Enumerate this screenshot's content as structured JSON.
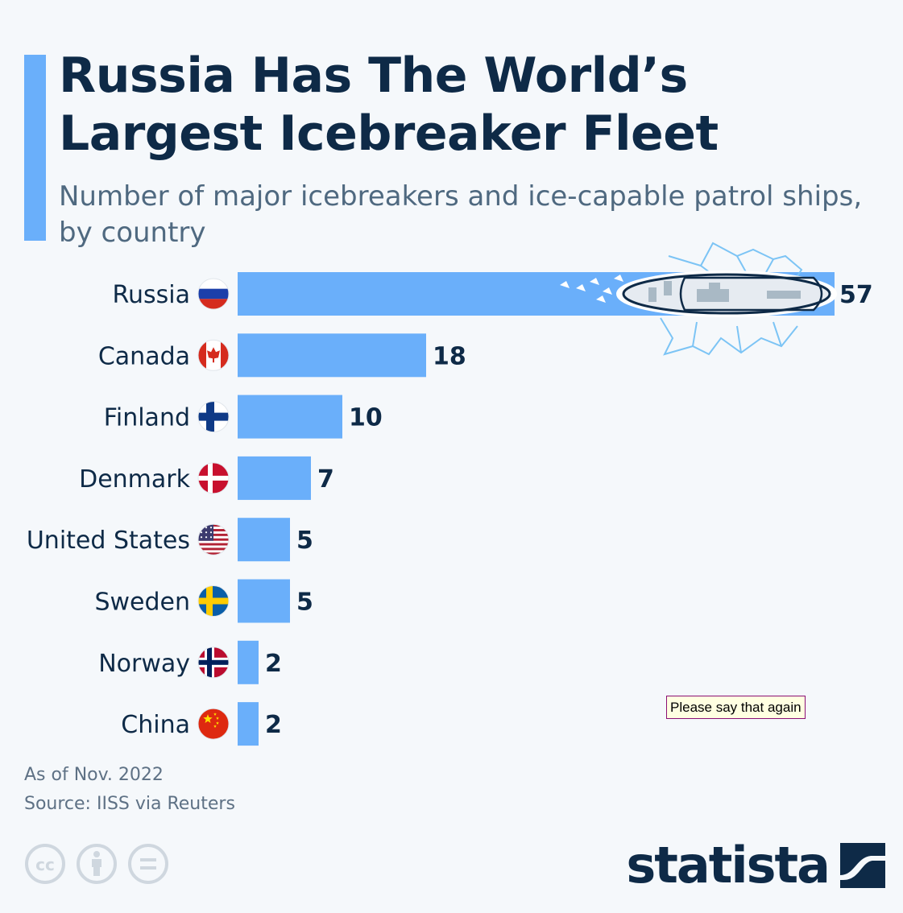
{
  "header": {
    "title": "Russia Has The World’s Largest Icebreaker Fleet",
    "subtitle": "Number of major icebreakers and ice-capable patrol ships, by country"
  },
  "footer": {
    "note": "As of Nov. 2022",
    "source": "Source: IISS via Reuters",
    "brand": "statista"
  },
  "tooltip": {
    "text": "Please say that again"
  },
  "colors": {
    "bar": "#6aaffa",
    "title": "#0e2a47",
    "subtitle": "#4f6980",
    "background": "#f5f8fb"
  },
  "chart_data": {
    "type": "bar",
    "orientation": "horizontal",
    "title": "Russia Has The World’s Largest Icebreaker Fleet",
    "subtitle": "Number of major icebreakers and ice-capable patrol ships, by country",
    "categories": [
      "Russia",
      "Canada",
      "Finland",
      "Denmark",
      "United States",
      "Sweden",
      "Norway",
      "China"
    ],
    "values": [
      57,
      18,
      10,
      7,
      5,
      5,
      2,
      2
    ],
    "flags": [
      "russia-flag-icon",
      "canada-flag-icon",
      "finland-flag-icon",
      "denmark-flag-icon",
      "united-states-flag-icon",
      "sweden-flag-icon",
      "norway-flag-icon",
      "china-flag-icon"
    ],
    "xlabel": "",
    "ylabel": "",
    "xlim": [
      0,
      60
    ],
    "grid": false,
    "legend": "none"
  }
}
